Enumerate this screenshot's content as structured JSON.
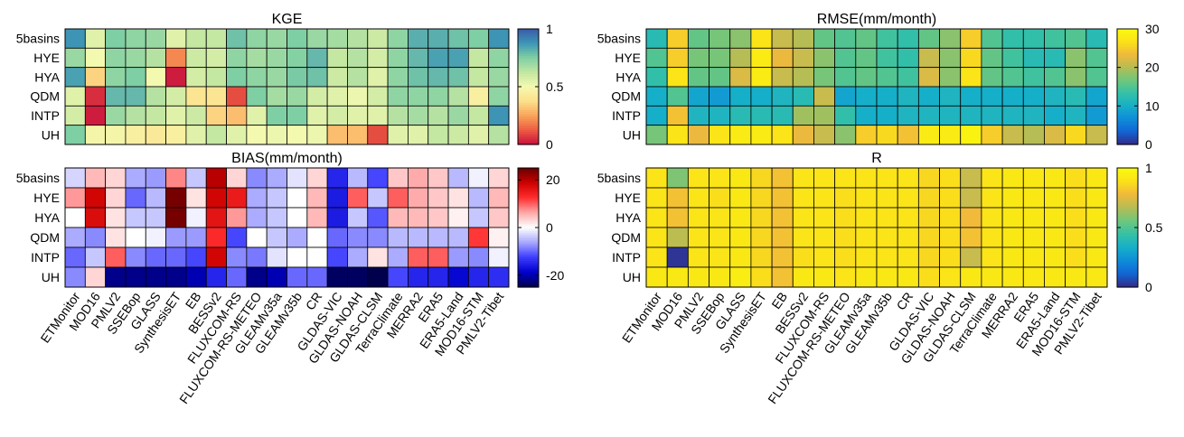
{
  "chart_data": [
    {
      "type": "heatmap",
      "title": "KGE",
      "rows": [
        "5basins",
        "HYE",
        "HYA",
        "QDM",
        "INTP",
        "UH"
      ],
      "columns": [
        "ETMonitor",
        "MOD16",
        "PMLV2",
        "SSEBop",
        "GLASS",
        "SynthesisET",
        "EB",
        "BESSv2",
        "FLUXCOM-RS",
        "FLUXCOM-RS-METEO",
        "GLEAMv35a",
        "GLEAMv35b",
        "CR",
        "GLDAS-VIC",
        "GLDAS-NOAH",
        "GLDAS-CLSM",
        "TerraClimate",
        "MERRA2",
        "ERA5",
        "ERA5-Land",
        "MOD16-STM",
        "PMLV2-Tibet"
      ],
      "colorbar": {
        "min": 0,
        "max": 1,
        "ticks": [
          0,
          0.5,
          1
        ],
        "colormap": "spectral"
      },
      "values": [
        [
          0.88,
          0.55,
          0.75,
          0.72,
          0.7,
          0.55,
          0.62,
          0.62,
          0.78,
          0.72,
          0.7,
          0.75,
          0.7,
          0.68,
          0.65,
          0.6,
          0.72,
          0.82,
          0.82,
          0.78,
          0.75,
          0.88
        ],
        [
          0.7,
          0.5,
          0.72,
          0.7,
          0.65,
          0.2,
          0.6,
          0.58,
          0.72,
          0.68,
          0.7,
          0.74,
          0.8,
          0.62,
          0.65,
          0.58,
          0.72,
          0.8,
          0.85,
          0.85,
          0.62,
          0.72
        ],
        [
          0.85,
          0.35,
          0.72,
          0.75,
          0.5,
          0.02,
          0.58,
          0.62,
          0.75,
          0.72,
          0.7,
          0.76,
          0.78,
          0.6,
          0.65,
          0.55,
          0.72,
          0.78,
          0.8,
          0.78,
          0.62,
          0.7
        ],
        [
          0.55,
          0.05,
          0.8,
          0.8,
          0.65,
          0.58,
          0.4,
          0.4,
          0.1,
          0.75,
          0.68,
          0.7,
          0.58,
          0.55,
          0.52,
          0.58,
          0.72,
          0.72,
          0.72,
          0.65,
          0.45,
          0.72
        ],
        [
          0.58,
          0.02,
          0.7,
          0.65,
          0.62,
          0.55,
          0.6,
          0.35,
          0.3,
          0.55,
          0.75,
          0.75,
          0.55,
          0.58,
          0.55,
          0.55,
          0.65,
          0.68,
          0.65,
          0.7,
          0.62,
          0.88
        ],
        [
          0.75,
          0.48,
          0.48,
          0.45,
          0.42,
          0.45,
          0.55,
          0.62,
          0.55,
          0.5,
          0.52,
          0.5,
          0.52,
          0.3,
          0.3,
          0.1,
          0.55,
          0.55,
          0.62,
          0.6,
          0.55,
          0.65
        ]
      ]
    },
    {
      "type": "heatmap",
      "title": "RMSE(mm/month)",
      "rows": [
        "5basins",
        "HYE",
        "HYA",
        "QDM",
        "INTP",
        "UH"
      ],
      "columns": [
        "ETMonitor",
        "MOD16",
        "PMLV2",
        "SSEBop",
        "GLASS",
        "SynthesisET",
        "EB",
        "BESSv2",
        "FLUXCOM-RS",
        "FLUXCOM-RS-METEO",
        "GLEAMv35a",
        "GLEAMv35b",
        "CR",
        "GLDAS-VIC",
        "GLDAS-NOAH",
        "GLDAS-CLSM",
        "TerraClimate",
        "MERRA2",
        "ERA5",
        "ERA5-Land",
        "MOD16-STM",
        "PMLV2-Tibet"
      ],
      "colorbar": {
        "min": 0,
        "max": 30,
        "ticks": [
          0,
          10,
          20,
          30
        ],
        "colormap": "parula"
      },
      "values": [
        [
          12,
          25,
          16,
          17,
          18,
          27,
          21,
          20,
          16,
          15,
          16,
          14,
          13,
          16,
          18,
          25,
          15,
          13,
          13,
          14,
          15,
          12
        ],
        [
          15,
          25,
          17,
          17,
          20,
          28,
          23,
          21,
          18,
          15,
          16,
          14,
          13,
          21,
          18,
          26,
          16,
          14,
          12,
          12,
          18,
          15
        ],
        [
          13,
          27,
          16,
          16,
          22,
          28,
          21,
          20,
          17,
          15,
          16,
          15,
          14,
          22,
          18,
          27,
          16,
          15,
          14,
          15,
          18,
          15
        ],
        [
          10,
          15,
          9,
          8,
          10,
          10,
          11,
          12,
          21,
          9,
          10,
          10,
          11,
          10,
          11,
          10,
          10,
          10,
          10,
          11,
          12,
          9
        ],
        [
          10,
          24,
          11,
          11,
          12,
          12,
          12,
          19,
          19,
          13,
          10,
          10,
          11,
          11,
          11,
          11,
          11,
          11,
          11,
          10,
          11,
          8
        ],
        [
          17,
          27,
          23,
          27,
          28,
          28,
          27,
          23,
          21,
          18,
          25,
          26,
          24,
          28,
          28,
          29,
          25,
          21,
          20,
          22,
          26,
          21
        ]
      ]
    },
    {
      "type": "heatmap",
      "title": "BIAS(mm/month)",
      "rows": [
        "5basins",
        "HYE",
        "HYA",
        "QDM",
        "INTP",
        "UH"
      ],
      "columns": [
        "ETMonitor",
        "MOD16",
        "PMLV2",
        "SSEBop",
        "GLASS",
        "SynthesisET",
        "EB",
        "BESSv2",
        "FLUXCOM-RS",
        "FLUXCOM-RS-METEO",
        "GLEAMv35a",
        "GLEAMv35b",
        "CR",
        "GLDAS-VIC",
        "GLDAS-NOAH",
        "GLDAS-CLSM",
        "TerraClimate",
        "MERRA2",
        "ERA5",
        "ERA5-Land",
        "MOD16-STM",
        "PMLV2-Tibet"
      ],
      "colorbar": {
        "min": -25,
        "max": 25,
        "ticks": [
          -20,
          0,
          20
        ],
        "colormap": "blue-white-red"
      },
      "values": [
        [
          -3,
          5,
          3,
          -6,
          -7,
          8,
          -4,
          20,
          3,
          -8,
          -6,
          -2,
          3,
          -15,
          -5,
          -12,
          4,
          6,
          4,
          -5,
          -1,
          3
        ],
        [
          7,
          18,
          3,
          -10,
          -5,
          24,
          2,
          18,
          15,
          -6,
          -4,
          0,
          5,
          -16,
          10,
          -4,
          10,
          6,
          4,
          2,
          -5,
          5
        ],
        [
          0,
          17,
          2,
          -4,
          -4,
          24,
          -1,
          16,
          7,
          -6,
          -4,
          0,
          5,
          -16,
          -4,
          -11,
          5,
          5,
          4,
          1,
          -4,
          4
        ],
        [
          -6,
          -8,
          2,
          0,
          -1,
          -7,
          -7,
          13,
          -12,
          0,
          -4,
          -6,
          0,
          -10,
          -8,
          -8,
          -5,
          -5,
          -5,
          -5,
          12,
          1
        ],
        [
          -10,
          -4,
          10,
          -8,
          -10,
          -10,
          -12,
          18,
          -8,
          -9,
          -2,
          0,
          0,
          -12,
          -6,
          2,
          -6,
          10,
          10,
          -7,
          -8,
          -1
        ],
        [
          -8,
          3,
          -22,
          -22,
          -22,
          -22,
          -20,
          -15,
          -10,
          -22,
          -20,
          -10,
          -10,
          -24,
          -24,
          -25,
          -12,
          -15,
          -15,
          -18,
          -15,
          -14
        ]
      ]
    },
    {
      "type": "heatmap",
      "title": "R",
      "rows": [
        "5basins",
        "HYE",
        "HYA",
        "QDM",
        "INTP",
        "UH"
      ],
      "columns": [
        "ETMonitor",
        "MOD16",
        "PMLV2",
        "SSEBop",
        "GLASS",
        "SynthesisET",
        "EB",
        "BESSv2",
        "FLUXCOM-RS",
        "FLUXCOM-RS-METEO",
        "GLEAMv35a",
        "GLEAMv35b",
        "CR",
        "GLDAS-VIC",
        "GLDAS-NOAH",
        "GLDAS-CLSM",
        "TerraClimate",
        "MERRA2",
        "ERA5",
        "ERA5-Land",
        "MOD16-STM",
        "PMLV2-Tibet"
      ],
      "colorbar": {
        "min": 0,
        "max": 1,
        "ticks": [
          0,
          0.5,
          1
        ],
        "colormap": "parula"
      },
      "values": [
        [
          0.9,
          0.58,
          0.9,
          0.9,
          0.92,
          0.86,
          0.8,
          0.9,
          0.9,
          0.9,
          0.9,
          0.9,
          0.9,
          0.86,
          0.88,
          0.7,
          0.9,
          0.92,
          0.92,
          0.92,
          0.88,
          0.92
        ],
        [
          0.9,
          0.8,
          0.9,
          0.88,
          0.92,
          0.86,
          0.8,
          0.9,
          0.9,
          0.88,
          0.9,
          0.9,
          0.9,
          0.86,
          0.88,
          0.7,
          0.9,
          0.92,
          0.92,
          0.92,
          0.88,
          0.92
        ],
        [
          0.9,
          0.8,
          0.9,
          0.9,
          0.92,
          0.86,
          0.8,
          0.9,
          0.9,
          0.88,
          0.9,
          0.9,
          0.9,
          0.86,
          0.88,
          0.78,
          0.9,
          0.92,
          0.92,
          0.92,
          0.88,
          0.92
        ],
        [
          0.9,
          0.68,
          0.9,
          0.9,
          0.92,
          0.86,
          0.8,
          0.9,
          0.9,
          0.88,
          0.9,
          0.9,
          0.9,
          0.86,
          0.88,
          0.8,
          0.9,
          0.92,
          0.92,
          0.92,
          0.88,
          0.92
        ],
        [
          0.9,
          0.02,
          0.9,
          0.9,
          0.92,
          0.86,
          0.8,
          0.88,
          0.9,
          0.88,
          0.9,
          0.9,
          0.9,
          0.86,
          0.88,
          0.7,
          0.9,
          0.92,
          0.92,
          0.92,
          0.88,
          0.92
        ],
        [
          0.92,
          0.92,
          0.92,
          0.92,
          0.94,
          0.88,
          0.8,
          0.92,
          0.92,
          0.9,
          0.92,
          0.92,
          0.92,
          0.88,
          0.9,
          0.92,
          0.92,
          0.92,
          0.92,
          0.92,
          0.92,
          0.92
        ]
      ]
    }
  ]
}
